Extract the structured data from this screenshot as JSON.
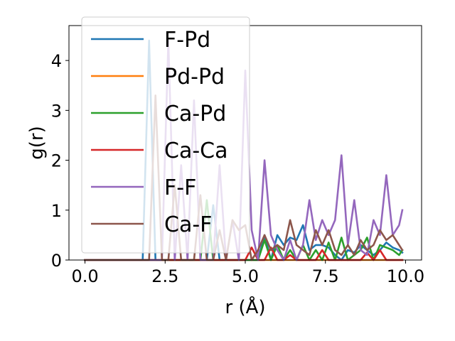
{
  "chart_data": {
    "type": "line",
    "title": "",
    "xlabel": "r (Å)",
    "ylabel": "g(r)",
    "xlim": [
      -0.5,
      10.5
    ],
    "ylim": [
      0,
      4.7
    ],
    "xticks": [
      0.0,
      2.5,
      5.0,
      7.5,
      10.0
    ],
    "xtick_labels": [
      "0.0",
      "2.5",
      "5.0",
      "7.5",
      "10.0"
    ],
    "yticks": [
      0,
      1,
      2,
      3,
      4
    ],
    "ytick_labels": [
      "0",
      "1",
      "2",
      "3",
      "4"
    ],
    "grid": false,
    "legend_position": "upper-left",
    "x": [
      0.0,
      0.2,
      0.4,
      0.6,
      0.8,
      1.0,
      1.2,
      1.4,
      1.6,
      1.8,
      2.0,
      2.2,
      2.4,
      2.6,
      2.8,
      3.0,
      3.2,
      3.4,
      3.6,
      3.8,
      4.0,
      4.2,
      4.4,
      4.6,
      4.8,
      5.0,
      5.2,
      5.4,
      5.6,
      5.8,
      6.0,
      6.2,
      6.4,
      6.6,
      6.8,
      7.0,
      7.2,
      7.4,
      7.6,
      7.8,
      8.0,
      8.2,
      8.4,
      8.6,
      8.8,
      9.0,
      9.2,
      9.4,
      9.6,
      9.8,
      9.9
    ],
    "series": [
      {
        "name": "F-Pd",
        "color": "#1f77b4",
        "values": [
          0,
          0,
          0,
          0,
          0,
          0,
          0,
          0,
          0,
          0,
          4.4,
          0,
          0,
          0,
          0,
          0,
          0,
          0,
          0,
          0,
          1.1,
          0,
          0,
          0,
          0,
          0,
          0,
          0,
          0.5,
          0,
          0.5,
          0.3,
          0.45,
          0.4,
          0.7,
          0.2,
          0.3,
          0.3,
          0.25,
          0.1,
          0,
          0.2,
          0.15,
          0.3,
          0.2,
          0.1,
          0.2,
          0.35,
          0.25,
          0.2,
          0.15
        ]
      },
      {
        "name": "Pd-Pd",
        "color": "#ff7f0e",
        "values": [
          0,
          0,
          0,
          0,
          0,
          0,
          0,
          0,
          0,
          0,
          0,
          0,
          0,
          0,
          0,
          0,
          0,
          0,
          0,
          0,
          0,
          0,
          0,
          0,
          0,
          0,
          0,
          0,
          0,
          0,
          0,
          0,
          0,
          0,
          0,
          0,
          0,
          0,
          0,
          0,
          0,
          0,
          0,
          0,
          0,
          0,
          0,
          0,
          0,
          0,
          0
        ]
      },
      {
        "name": "Ca-Pd",
        "color": "#2ca02c",
        "values": [
          0,
          0,
          0,
          0,
          0,
          0,
          0,
          0,
          0,
          0,
          0,
          0,
          0,
          0,
          0,
          0,
          0,
          0,
          0,
          1.2,
          0,
          0,
          0,
          0,
          0,
          0,
          0,
          0,
          0.4,
          0,
          0.3,
          0,
          0.2,
          0,
          0.3,
          0,
          0.2,
          0,
          0.35,
          0,
          0.45,
          0,
          0.1,
          0.2,
          0.45,
          0,
          0.3,
          0.25,
          0.2,
          0.1,
          0.2
        ]
      },
      {
        "name": "Ca-Ca",
        "color": "#d62728",
        "values": [
          0,
          0,
          0,
          0,
          0,
          0,
          0,
          0,
          0,
          0,
          0,
          0,
          0,
          0,
          0,
          0,
          0,
          0,
          0,
          0,
          0,
          0,
          0,
          0,
          0,
          0,
          0.25,
          0,
          0,
          0.25,
          0,
          0,
          0.1,
          0,
          0,
          0,
          0,
          0.2,
          0,
          0,
          0,
          0,
          0,
          0,
          0.15,
          0,
          0.2,
          0,
          0,
          0,
          0
        ]
      },
      {
        "name": "F-F",
        "color": "#9467bd",
        "values": [
          0,
          0,
          0,
          0,
          0,
          0,
          0,
          0,
          0,
          0,
          0,
          0,
          0,
          4.4,
          0,
          1.9,
          0,
          3.2,
          0,
          0,
          0,
          1.9,
          0,
          0.8,
          0,
          3.8,
          0.6,
          0,
          2.0,
          0.5,
          0.2,
          0,
          0.4,
          0,
          0.3,
          1.2,
          0.4,
          0.8,
          0.5,
          0.8,
          2.1,
          0.3,
          1.2,
          0.2,
          0.1,
          0.8,
          0.5,
          1.7,
          0.5,
          0.7,
          1.0
        ]
      },
      {
        "name": "Ca-F",
        "color": "#8c564b",
        "values": [
          0,
          0,
          0,
          0,
          0,
          0,
          0,
          0,
          0,
          0,
          0,
          3.3,
          0,
          0,
          1.5,
          0,
          0,
          0,
          1.3,
          0,
          0,
          0.6,
          0,
          0.8,
          0.6,
          0.7,
          0,
          0.2,
          0.5,
          0.2,
          0.3,
          0.2,
          0.8,
          0.3,
          0.2,
          0.1,
          0.6,
          0.3,
          0.6,
          0.2,
          0.1,
          0.3,
          0.1,
          0.4,
          0.2,
          0.3,
          0.6,
          0.4,
          0.5,
          0.3,
          0.2
        ]
      }
    ]
  }
}
